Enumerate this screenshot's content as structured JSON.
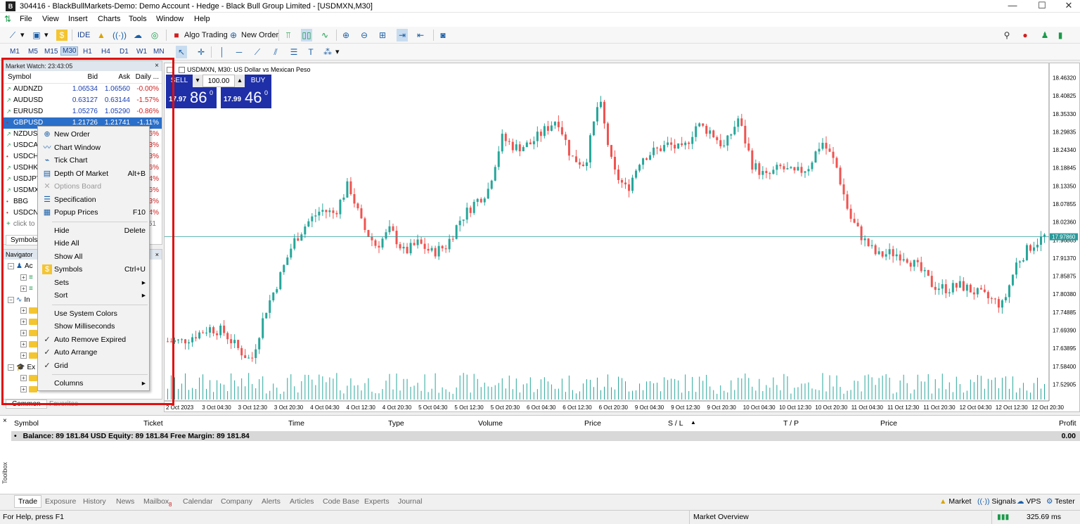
{
  "window": {
    "title": "304416 - BlackBullMarkets-Demo: Demo Account - Hedge - Black Bull Group Limited - [USDMXN,M30]",
    "controls": [
      "—",
      "☐",
      "✕"
    ]
  },
  "menu": [
    "File",
    "View",
    "Insert",
    "Charts",
    "Tools",
    "Window",
    "Help"
  ],
  "toolbar": {
    "ide": "IDE",
    "algo": "Algo Trading",
    "new_order": "New Order"
  },
  "timeframes": [
    "M1",
    "M5",
    "M15",
    "M30",
    "H1",
    "H4",
    "D1",
    "W1",
    "MN"
  ],
  "market_watch": {
    "title": "Market Watch: 23:43:05",
    "columns": [
      "Symbol",
      "Bid",
      "Ask",
      "Daily ..."
    ],
    "rows": [
      {
        "dir": "up",
        "symbol": "AUDNZD",
        "bid": "1.06534",
        "ask": "1.06560",
        "change": "-0.00%"
      },
      {
        "dir": "up",
        "symbol": "AUDUSD",
        "bid": "0.63127",
        "ask": "0.63144",
        "change": "-1.57%"
      },
      {
        "dir": "up",
        "symbol": "EURUSD",
        "bid": "1.05276",
        "ask": "1.05290",
        "change": "-0.86%"
      },
      {
        "dir": "dn",
        "symbol": "GBPUSD",
        "bid": "1.21726",
        "ask": "1.21741",
        "change": "-1.11%"
      },
      {
        "dir": "up",
        "symbol": "NZDUS",
        "bid": "",
        "ask": "",
        "change": "6%"
      },
      {
        "dir": "up",
        "symbol": "USDCA",
        "bid": "",
        "ask": "",
        "change": "3%"
      },
      {
        "dir": "dn",
        "symbol": "USDCH",
        "bid": "",
        "ask": "",
        "change": "3%"
      },
      {
        "dir": "up",
        "symbol": "USDHK",
        "bid": "",
        "ask": "",
        "change": "6%"
      },
      {
        "dir": "up",
        "symbol": "USDJPY",
        "bid": "",
        "ask": "",
        "change": "4%"
      },
      {
        "dir": "up",
        "symbol": "USDMX",
        "bid": "",
        "ask": "",
        "change": "6%"
      },
      {
        "dir": "dn",
        "symbol": "BBG",
        "bid": "",
        "ask": "",
        "change": "3%"
      },
      {
        "dir": "dn",
        "symbol": "USDCN",
        "bid": "",
        "ask": "",
        "change": "4%"
      }
    ],
    "add_label": "click to",
    "add_count": "51",
    "tabs": [
      "Symbols"
    ]
  },
  "navigator": {
    "title": "Navigator",
    "items": [
      "Ac",
      "In",
      "Ex"
    ],
    "tabs": [
      "Common",
      "Favorites"
    ]
  },
  "context_menu": [
    {
      "label": "New Order",
      "shortcut": "",
      "icon": "new-order-icon",
      "glyph": "⊕"
    },
    {
      "label": "Chart Window",
      "shortcut": "",
      "icon": "chart-icon",
      "glyph": "〰"
    },
    {
      "label": "Tick Chart",
      "shortcut": "",
      "icon": "tick-chart-icon",
      "glyph": "⌁"
    },
    {
      "label": "Depth Of Market",
      "shortcut": "Alt+B",
      "icon": "depth-icon",
      "glyph": "▤"
    },
    {
      "label": "Options Board",
      "shortcut": "",
      "icon": "options-icon",
      "glyph": "✕",
      "disabled": true
    },
    {
      "label": "Specification",
      "shortcut": "",
      "icon": "spec-icon",
      "glyph": "☰"
    },
    {
      "label": "Popup Prices",
      "shortcut": "F10",
      "icon": "popup-icon",
      "glyph": "▦"
    },
    {
      "sep": true
    },
    {
      "label": "Hide",
      "shortcut": "Delete"
    },
    {
      "label": "Hide All",
      "shortcut": ""
    },
    {
      "label": "Show All",
      "shortcut": ""
    },
    {
      "label": "Symbols",
      "shortcut": "Ctrl+U",
      "icon": "symbols-icon",
      "glyph": "$"
    },
    {
      "label": "Sets",
      "shortcut": "▸"
    },
    {
      "label": "Sort",
      "shortcut": "▸"
    },
    {
      "sep": true
    },
    {
      "label": "Use System Colors",
      "shortcut": ""
    },
    {
      "label": "Show Milliseconds",
      "shortcut": ""
    },
    {
      "label": "Auto Remove Expired",
      "shortcut": "",
      "check": true
    },
    {
      "label": "Auto Arrange",
      "shortcut": "",
      "check": true
    },
    {
      "label": "Grid",
      "shortcut": "",
      "check": true
    },
    {
      "sep": true
    },
    {
      "label": "Columns",
      "shortcut": "▸"
    }
  ],
  "chart": {
    "title": "USDMXN, M30:  US Dollar vs Mexican Peso",
    "sell": "SELL",
    "buy": "BUY",
    "volume": "100.00",
    "bid_small": "17.97",
    "bid_big": "86",
    "bid_sup": "0",
    "ask_small": "17.99",
    "ask_big": "46",
    "ask_sup": "0",
    "current_price": "17.97860",
    "price_labels": [
      "18.46320",
      "18.40825",
      "18.35330",
      "18.29835",
      "18.24340",
      "18.18845",
      "18.13350",
      "18.07855",
      "18.02360",
      "17.96865",
      "17.91370",
      "17.85875",
      "17.80380",
      "17.74885",
      "17.69390",
      "17.63895",
      "17.58400",
      "17.52905"
    ],
    "time_labels": [
      "2 Oct 2023",
      "3 Oct 04:30",
      "3 Oct 12:30",
      "3 Oct 20:30",
      "4 Oct 04:30",
      "4 Oct 12:30",
      "4 Oct 20:30",
      "5 Oct 04:30",
      "5 Oct 12:30",
      "5 Oct 20:30",
      "6 Oct 04:30",
      "6 Oct 12:30",
      "6 Oct 20:30",
      "9 Oct 04:30",
      "9 Oct 12:30",
      "9 Oct 20:30",
      "10 Oct 04:30",
      "10 Oct 12:30",
      "10 Oct 20:30",
      "11 Oct 04:30",
      "11 Oct 12:30",
      "11 Oct 20:30",
      "12 Oct 04:30",
      "12 Oct 12:30",
      "12 Oct 20:30"
    ],
    "up_color": "#26a69a",
    "down_color": "#ef5350"
  },
  "chart_data": {
    "type": "candlestick",
    "symbol": "USDMXN",
    "timeframe": "M30",
    "ylim": [
      17.5,
      18.49
    ],
    "close_path": [
      17.66,
      17.66,
      17.68,
      17.7,
      17.69,
      17.64,
      17.6,
      17.75,
      17.85,
      17.96,
      18.02,
      18.06,
      18.05,
      18.14,
      18.01,
      17.95,
      18.0,
      17.93,
      17.96,
      17.93,
      17.95,
      18.03,
      18.08,
      18.12,
      18.28,
      18.25,
      18.26,
      18.3,
      18.34,
      18.22,
      18.2,
      18.4,
      18.18,
      18.12,
      18.22,
      18.24,
      18.26,
      18.24,
      18.32,
      18.3,
      18.25,
      18.34,
      18.2,
      18.16,
      18.19,
      18.17,
      18.19,
      18.27,
      18.2,
      18.04,
      17.97,
      17.92,
      17.93,
      17.92,
      17.88,
      17.83,
      17.82,
      17.83,
      17.81,
      17.79,
      17.77,
      17.9,
      17.95,
      17.98
    ]
  },
  "terminal": {
    "columns": [
      "Symbol",
      "Ticket",
      "Time",
      "Type",
      "Volume",
      "Price",
      "S / L",
      "T / P",
      "Price",
      "Profit"
    ],
    "balance": "Balance: 89 181.84 USD  Equity: 89 181.84  Free Margin: 89 181.84",
    "profit_total": "0.00",
    "tabs": [
      "Trade",
      "Exposure",
      "History",
      "News",
      "Mailbox",
      "Calendar",
      "Company",
      "Alerts",
      "Articles",
      "Code Base",
      "Experts",
      "Journal"
    ],
    "mailbox_badge": "8",
    "right": [
      "Market",
      "Signals",
      "VPS",
      "Tester"
    ],
    "toolbox_label": "Toolbox"
  },
  "status": {
    "help": "For Help, press F1",
    "market_overview": "Market Overview",
    "ping": "325.69 ms"
  }
}
